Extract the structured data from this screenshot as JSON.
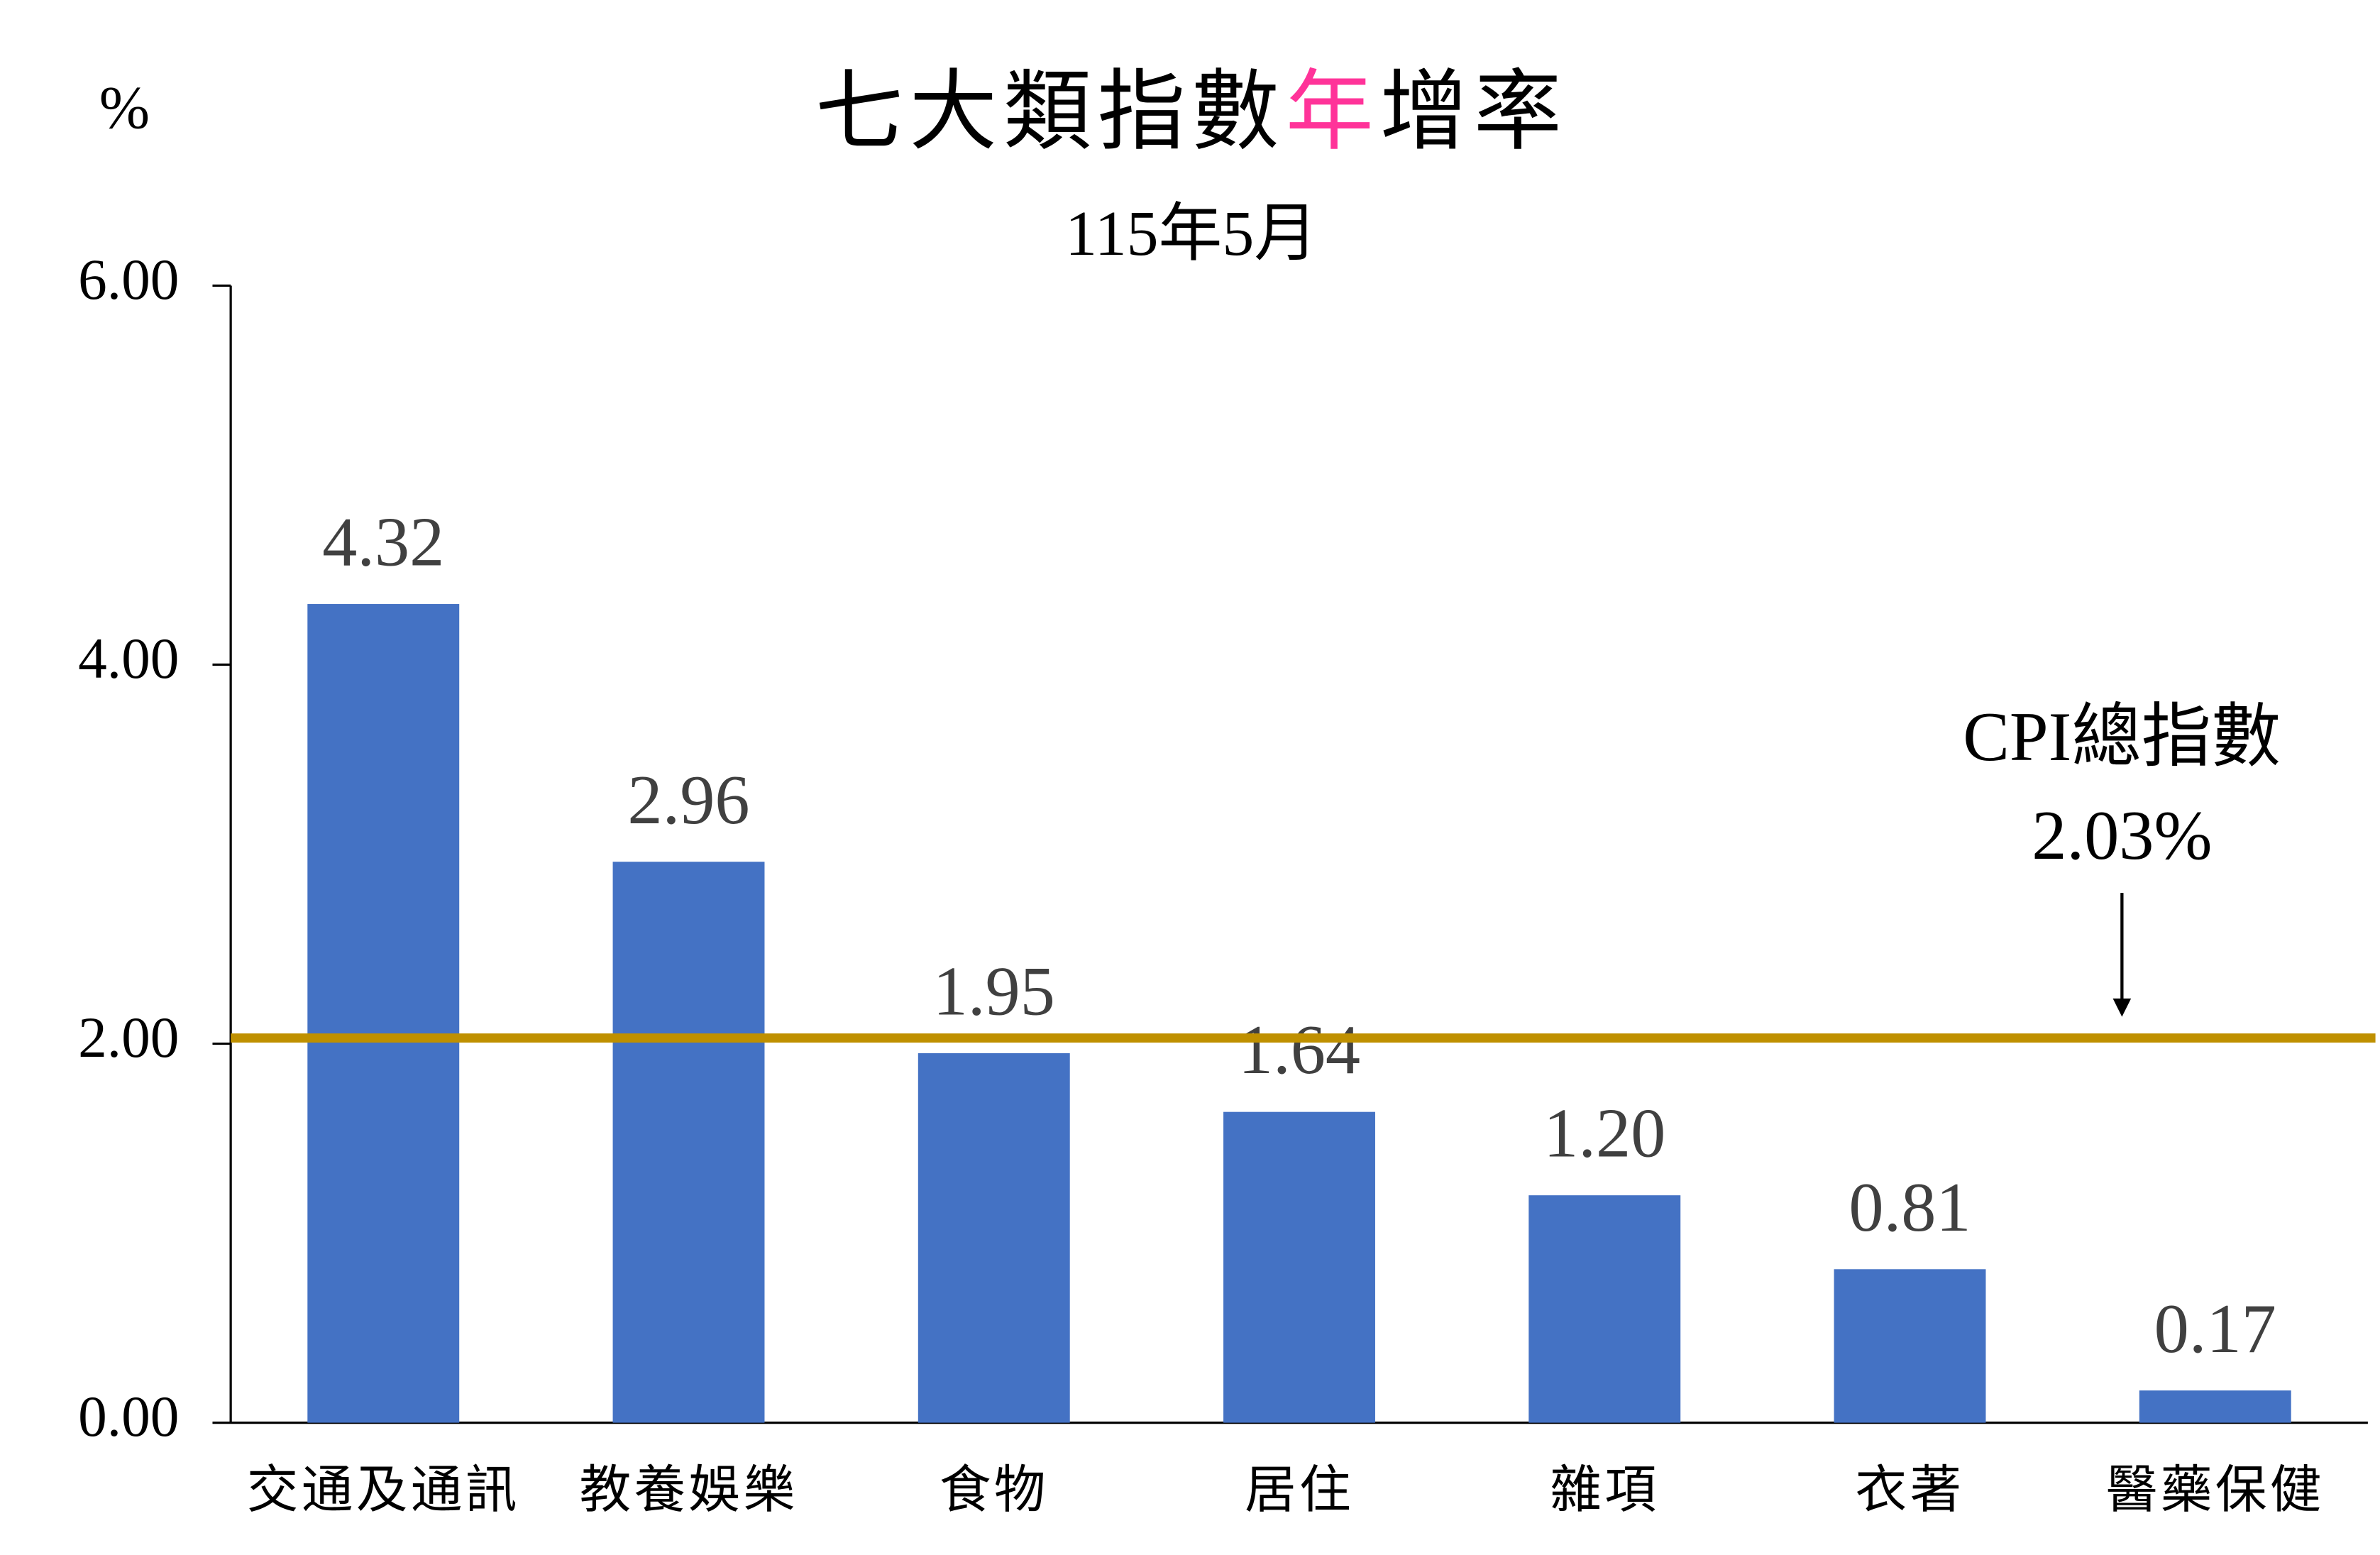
{
  "chart_data": {
    "type": "bar",
    "title": [
      {
        "text": "七大類指數",
        "color": "#000000"
      },
      {
        "text": "年",
        "color": "#ff3399"
      },
      {
        "text": "增率",
        "color": "#000000"
      }
    ],
    "subtitle": "115年5月",
    "y_axis_label": "%",
    "categories": [
      "交通及通訊",
      "教養娛樂",
      "食物",
      "居住",
      "雜項",
      "衣著",
      "醫藥保健"
    ],
    "values": [
      4.32,
      2.96,
      1.95,
      1.64,
      1.2,
      0.81,
      0.17
    ],
    "value_labels": [
      "4.32",
      "2.96",
      "1.95",
      "1.64",
      "1.20",
      "0.81",
      "0.17"
    ],
    "color": "#4472c4",
    "ylim": [
      0,
      6
    ],
    "yticks": [
      {
        "value": 0,
        "label": "0.00"
      },
      {
        "value": 2,
        "label": "2.00"
      },
      {
        "value": 4,
        "label": "4.00"
      },
      {
        "value": 6,
        "label": "6.00"
      }
    ],
    "reference_line": {
      "value": 2.03,
      "label": "CPI總指數",
      "value_label": "2.03%",
      "color": "#bf9000"
    }
  }
}
